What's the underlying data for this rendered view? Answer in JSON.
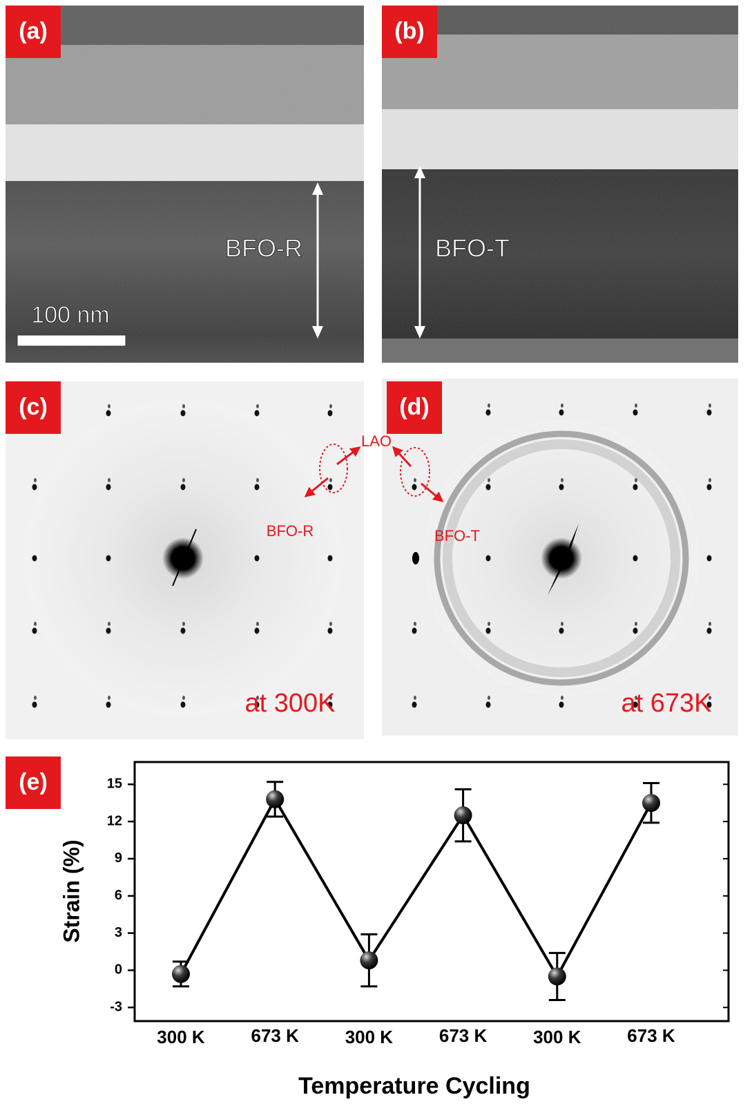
{
  "panels": [
    {
      "label": "(a)",
      "annotation": "BFO-R",
      "scale_bar": "100 nm"
    },
    {
      "label": "(b)",
      "annotation": "BFO-T"
    },
    {
      "label": "(c)",
      "temperature": "at 300K"
    },
    {
      "label": "(d)",
      "temperature": "at 673K"
    }
  ],
  "diffraction_annotations": [
    "LAO",
    "BFO-R",
    "BFO-T"
  ],
  "chart_data": {
    "type": "line",
    "panel_label": "(e)",
    "xlabel": "Temperature Cycling",
    "ylabel": "Strain (%)",
    "categories": [
      "300 K",
      "673 K",
      "300 K",
      "673 K",
      "300 K",
      "673 K"
    ],
    "values": [
      -0.3,
      13.8,
      0.8,
      12.5,
      -0.5,
      13.5
    ],
    "errors": [
      1.0,
      1.4,
      2.1,
      2.1,
      1.9,
      1.6
    ],
    "color": "#000000",
    "ylim": [
      -4.1,
      16.8
    ],
    "yticks": [
      -3,
      0,
      3,
      6,
      9,
      12,
      15
    ]
  }
}
